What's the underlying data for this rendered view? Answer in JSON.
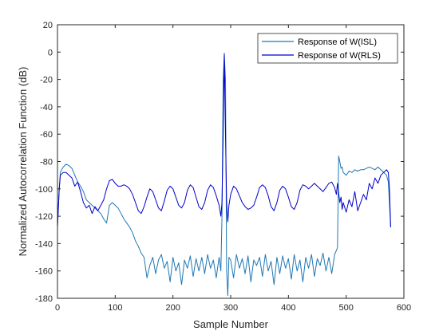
{
  "chart_data": {
    "type": "line",
    "title": "",
    "xlabel": "Sample Number",
    "ylabel": "Normalized Autocorrelation Function (dB)",
    "xlim": [
      0,
      600
    ],
    "ylim": [
      -180,
      20
    ],
    "xticks": [
      0,
      100,
      200,
      300,
      400,
      500,
      600
    ],
    "yticks": [
      20,
      0,
      -20,
      -40,
      -60,
      -80,
      -100,
      -120,
      -140,
      -160,
      -180
    ],
    "grid": false,
    "legend_position": "top-right",
    "series": [
      {
        "name": "Response of W(ISL)",
        "color": "#1f77b4",
        "x": [
          0,
          3,
          5,
          10,
          15,
          20,
          25,
          30,
          35,
          40,
          45,
          50,
          55,
          60,
          65,
          70,
          75,
          80,
          85,
          90,
          95,
          100,
          105,
          110,
          115,
          120,
          125,
          130,
          135,
          140,
          145,
          150,
          155,
          160,
          165,
          170,
          175,
          180,
          185,
          190,
          195,
          200,
          205,
          210,
          215,
          220,
          225,
          230,
          235,
          240,
          245,
          250,
          255,
          260,
          265,
          270,
          275,
          280,
          283,
          285,
          287,
          289,
          291,
          293,
          295,
          297,
          300,
          305,
          310,
          315,
          320,
          325,
          330,
          335,
          340,
          345,
          350,
          355,
          360,
          365,
          370,
          375,
          380,
          385,
          390,
          395,
          400,
          405,
          410,
          415,
          420,
          425,
          430,
          435,
          440,
          445,
          450,
          455,
          460,
          465,
          470,
          475,
          480,
          483,
          485,
          487,
          489,
          491,
          493,
          495,
          500,
          505,
          510,
          515,
          520,
          525,
          530,
          535,
          540,
          545,
          550,
          555,
          560,
          565,
          570,
          573,
          575,
          577
        ],
        "y": [
          -128,
          -100,
          -88,
          -84,
          -82,
          -83,
          -85,
          -90,
          -95,
          -98,
          -102,
          -108,
          -110,
          -112,
          -114,
          -116,
          -118,
          -122,
          -125,
          -112,
          -110,
          -112,
          -114,
          -118,
          -122,
          -125,
          -128,
          -132,
          -138,
          -142,
          -147,
          -150,
          -165,
          -156,
          -150,
          -162,
          -152,
          -148,
          -158,
          -153,
          -168,
          -150,
          -160,
          -154,
          -170,
          -152,
          -158,
          -149,
          -164,
          -151,
          -160,
          -150,
          -162,
          -148,
          -158,
          -152,
          -165,
          -150,
          -160,
          -120,
          -20,
          -2,
          -20,
          -160,
          -178,
          -150,
          -152,
          -165,
          -148,
          -158,
          -151,
          -162,
          -149,
          -168,
          -152,
          -156,
          -150,
          -164,
          -148,
          -160,
          -153,
          -170,
          -150,
          -162,
          -149,
          -158,
          -151,
          -166,
          -148,
          -160,
          -152,
          -168,
          -150,
          -158,
          -148,
          -164,
          -151,
          -156,
          -147,
          -160,
          -150,
          -162,
          -148,
          -145,
          -143,
          -76,
          -80,
          -85,
          -84,
          -88,
          -90,
          -87,
          -88,
          -86,
          -87,
          -86,
          -86,
          -85,
          -84,
          -85,
          -86,
          -84,
          -86,
          -88,
          -90,
          -95,
          -110,
          -128
        ]
      },
      {
        "name": "Response of W(RLS)",
        "color": "#0000cd",
        "x": [
          0,
          3,
          5,
          10,
          15,
          20,
          25,
          30,
          35,
          40,
          45,
          50,
          55,
          60,
          65,
          70,
          75,
          80,
          85,
          90,
          95,
          100,
          105,
          110,
          115,
          120,
          125,
          130,
          135,
          140,
          145,
          150,
          155,
          160,
          165,
          170,
          175,
          180,
          185,
          190,
          195,
          200,
          205,
          210,
          215,
          220,
          225,
          230,
          235,
          240,
          245,
          250,
          255,
          260,
          265,
          270,
          275,
          280,
          283,
          285,
          287,
          289,
          291,
          293,
          295,
          297,
          300,
          305,
          310,
          315,
          320,
          325,
          330,
          335,
          340,
          345,
          350,
          355,
          360,
          365,
          370,
          375,
          380,
          385,
          390,
          395,
          400,
          405,
          410,
          415,
          420,
          425,
          430,
          435,
          440,
          445,
          450,
          455,
          460,
          465,
          470,
          475,
          480,
          483,
          485,
          487,
          489,
          491,
          493,
          495,
          500,
          505,
          510,
          515,
          520,
          525,
          530,
          535,
          540,
          545,
          550,
          555,
          560,
          565,
          570,
          573,
          575,
          577
        ],
        "y": [
          -128,
          -100,
          -90,
          -88,
          -88,
          -90,
          -92,
          -98,
          -95,
          -102,
          -110,
          -114,
          -112,
          -118,
          -113,
          -116,
          -112,
          -108,
          -100,
          -94,
          -93,
          -96,
          -98,
          -98,
          -97,
          -98,
          -100,
          -104,
          -110,
          -116,
          -118,
          -113,
          -106,
          -100,
          -102,
          -108,
          -114,
          -116,
          -109,
          -101,
          -98,
          -100,
          -106,
          -112,
          -114,
          -110,
          -101,
          -97,
          -99,
          -106,
          -113,
          -115,
          -110,
          -101,
          -97,
          -99,
          -105,
          -112,
          -120,
          -110,
          -60,
          -1,
          -60,
          -110,
          -124,
          -112,
          -104,
          -98,
          -100,
          -105,
          -110,
          -113,
          -115,
          -114,
          -112,
          -106,
          -99,
          -97,
          -99,
          -105,
          -113,
          -116,
          -110,
          -101,
          -98,
          -100,
          -106,
          -113,
          -115,
          -110,
          -101,
          -97,
          -98,
          -100,
          -98,
          -96,
          -98,
          -100,
          -102,
          -99,
          -96,
          -95,
          -99,
          -104,
          -96,
          -103,
          -110,
          -106,
          -115,
          -110,
          -117,
          -108,
          -113,
          -102,
          -116,
          -110,
          -104,
          -108,
          -96,
          -100,
          -92,
          -96,
          -90,
          -88,
          -86,
          -88,
          -100,
          -128
        ]
      }
    ]
  }
}
